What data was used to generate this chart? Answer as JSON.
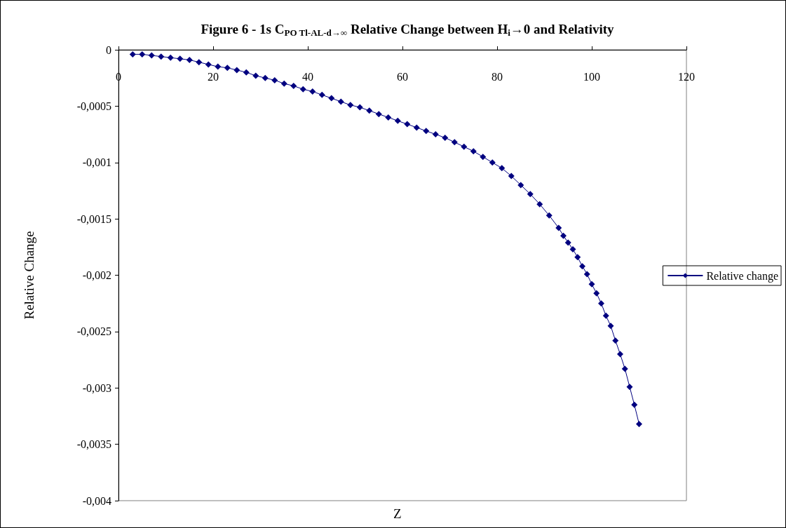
{
  "chart_data": {
    "type": "line",
    "title": "Figure 6 - 1s C$_{PO Tl-AL-d→∞}$ Relative Change between H$_{i}$→0 and Relativity",
    "xlabel": "Z",
    "ylabel": "Relative Change",
    "series": [
      {
        "name": "Relative change",
        "color": "#000080",
        "x": [
          3,
          5,
          7,
          9,
          11,
          13,
          15,
          17,
          19,
          21,
          23,
          25,
          27,
          29,
          31,
          33,
          35,
          37,
          39,
          41,
          43,
          45,
          47,
          49,
          51,
          53,
          55,
          57,
          59,
          61,
          63,
          65,
          67,
          69,
          71,
          73,
          75,
          77,
          79,
          81,
          83,
          85,
          87,
          89,
          91,
          93,
          94,
          95,
          96,
          97,
          98,
          99,
          100,
          101,
          102,
          103,
          104,
          105,
          106,
          107,
          108,
          109,
          110
        ],
        "values": [
          -4e-05,
          -4e-05,
          -5e-05,
          -6e-05,
          -7e-05,
          -8e-05,
          -9e-05,
          -0.00011,
          -0.00013,
          -0.00015,
          -0.00016,
          -0.00018,
          -0.0002,
          -0.00023,
          -0.00025,
          -0.00027,
          -0.0003,
          -0.00032,
          -0.00035,
          -0.00037,
          -0.0004,
          -0.00043,
          -0.00046,
          -0.00049,
          -0.00051,
          -0.00054,
          -0.00057,
          -0.0006,
          -0.00063,
          -0.00066,
          -0.00069,
          -0.00072,
          -0.00075,
          -0.00078,
          -0.00082,
          -0.00086,
          -0.0009,
          -0.00095,
          -0.001,
          -0.00105,
          -0.00112,
          -0.0012,
          -0.00128,
          -0.00137,
          -0.00147,
          -0.00158,
          -0.00165,
          -0.00171,
          -0.00177,
          -0.00184,
          -0.00192,
          -0.00199,
          -0.00208,
          -0.00216,
          -0.00225,
          -0.00236,
          -0.00245,
          -0.00258,
          -0.0027,
          -0.00283,
          -0.00299,
          -0.00315,
          -0.00332
        ]
      }
    ],
    "xlim": [
      0,
      120
    ],
    "xticks": [
      0,
      20,
      40,
      60,
      80,
      100,
      120
    ],
    "ylim": [
      -0.004,
      0
    ],
    "yticks": [
      {
        "value": -0.004,
        "label": "-0,004"
      },
      {
        "value": -0.0035,
        "label": "-0,0035"
      },
      {
        "value": -0.003,
        "label": "-0,003"
      },
      {
        "value": -0.0025,
        "label": "-0,0025"
      },
      {
        "value": -0.002,
        "label": "-0,002"
      },
      {
        "value": -0.0015,
        "label": "-0,0015"
      },
      {
        "value": -0.001,
        "label": "-0,001"
      },
      {
        "value": -0.0005,
        "label": "-0,0005"
      },
      0
    ],
    "grid": false,
    "legend": "right",
    "marker": "diamond",
    "line_style": "solid"
  }
}
